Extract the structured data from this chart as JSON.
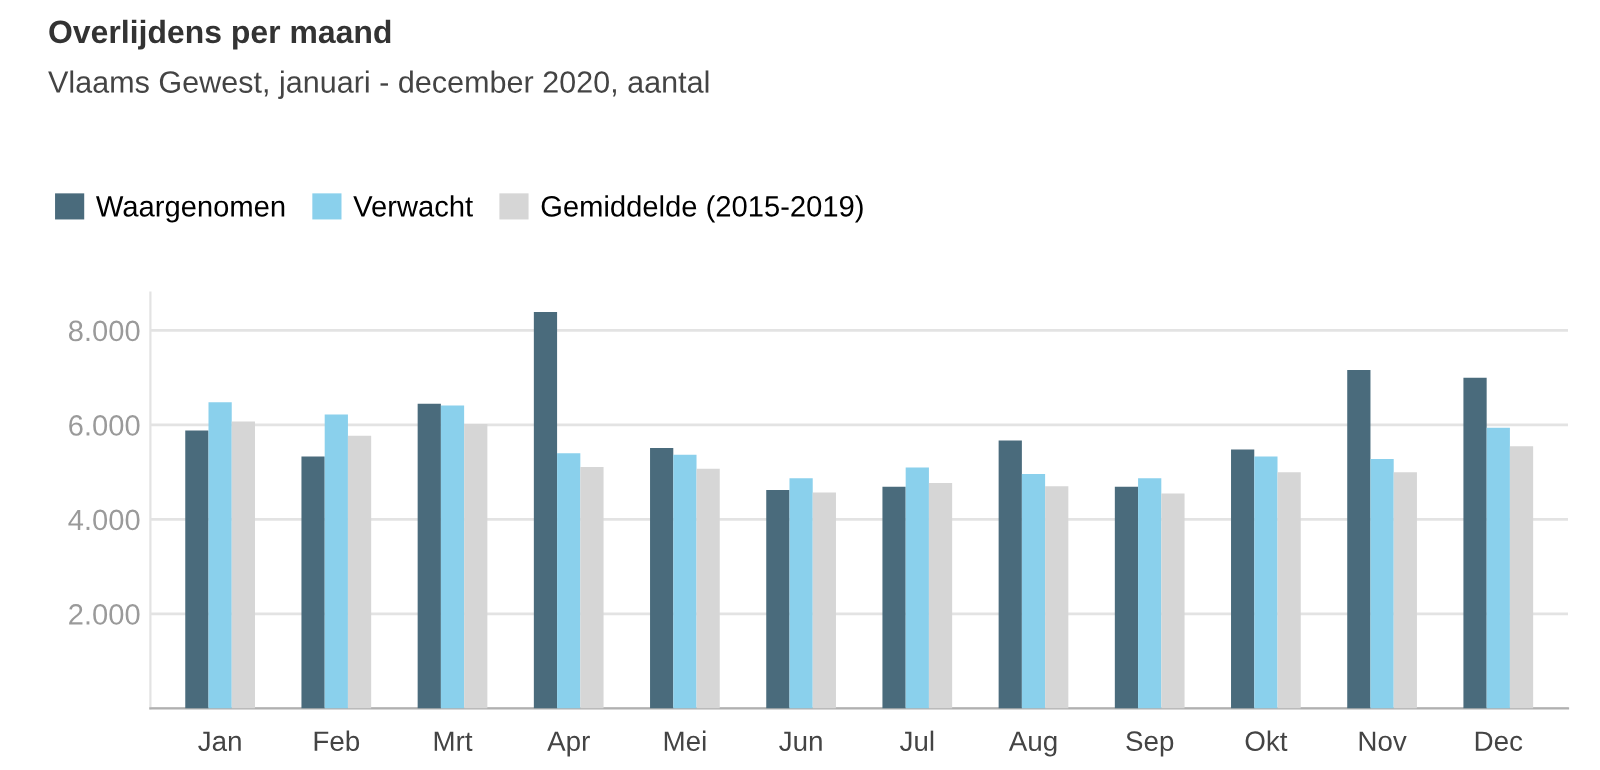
{
  "chart_data": {
    "type": "bar",
    "title": "Overlijdens per maand",
    "subtitle": "Vlaams Gewest, januari - december 2020, aantal",
    "categories": [
      "Jan",
      "Feb",
      "Mrt",
      "Apr",
      "Mei",
      "Jun",
      "Jul",
      "Aug",
      "Sep",
      "Okt",
      "Nov",
      "Dec"
    ],
    "series": [
      {
        "name": "Waargenomen",
        "color": "#4a6b7c",
        "values": [
          5880,
          5330,
          6450,
          8390,
          5510,
          4620,
          4690,
          5670,
          4690,
          5480,
          7160,
          7000
        ]
      },
      {
        "name": "Verwacht",
        "color": "#8ad0ec",
        "values": [
          6480,
          6220,
          6410,
          5400,
          5370,
          4870,
          5100,
          4960,
          4870,
          5330,
          5280,
          5940
        ]
      },
      {
        "name": "Gemiddelde (2015-2019)",
        "color": "#d6d6d6",
        "values": [
          6070,
          5770,
          6020,
          5110,
          5070,
          4570,
          4770,
          4700,
          4550,
          5000,
          5000,
          5550
        ]
      }
    ],
    "yticks": [
      {
        "value": 0,
        "label": null
      },
      {
        "value": 2000,
        "label": "2.000"
      },
      {
        "value": 4000,
        "label": "4.000"
      },
      {
        "value": 6000,
        "label": "6.000"
      },
      {
        "value": 8000,
        "label": "8.000"
      }
    ],
    "ylim": [
      0,
      8800
    ],
    "grid": "y",
    "legend": "top left"
  }
}
